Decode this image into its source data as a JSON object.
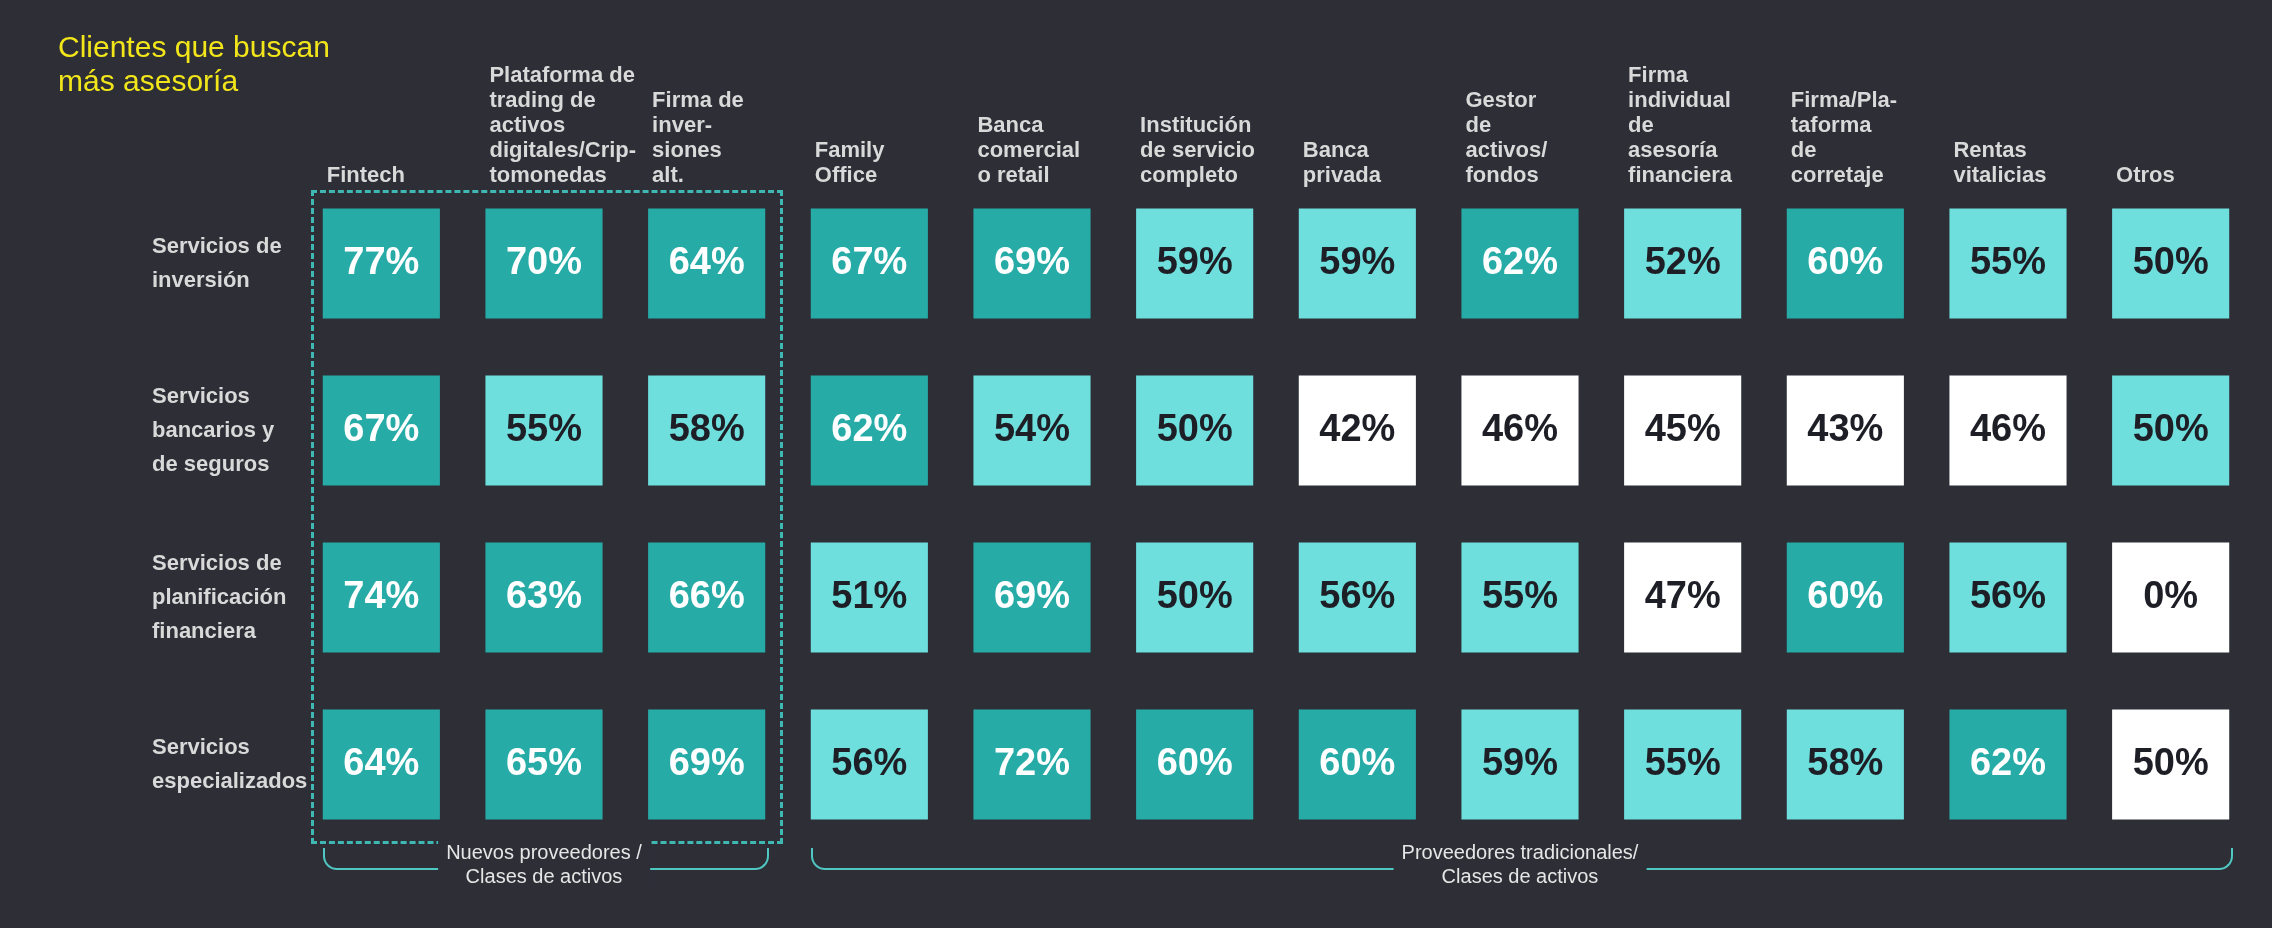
{
  "chart_data": {
    "type": "heatmap",
    "title": "Clientes que buscan\nmás asesoría",
    "categories": [
      "Fintech",
      "Plataforma de\ntrading de\nactivos\ndigitales/Crip-\ntomonedas",
      "Firma de\ninver-\nsiones\nalt.",
      "Family\nOffice",
      "Banca\ncomercial\no retail",
      "Institución\nde servicio\ncompleto",
      "Banca\nprivada",
      "Gestor\nde\nactivos/\nfondos",
      "Firma\nindividual\nde\nasesoría\nfinanciera",
      "Firma/Pla-\ntaforma\nde\ncorretaje",
      "Rentas\nvitalicias",
      "Otros"
    ],
    "y_categories": [
      "Servicios de\ninversión",
      "Servicios\nbancarios y\nde seguros",
      "Servicios de\nplanificación\nfinanciera",
      "Servicios\nespecializados"
    ],
    "cells": [
      [
        77,
        70,
        64,
        67,
        69,
        59,
        59,
        62,
        52,
        60,
        55,
        50
      ],
      [
        67,
        55,
        58,
        62,
        54,
        50,
        42,
        46,
        45,
        43,
        46,
        50
      ],
      [
        74,
        63,
        66,
        51,
        69,
        50,
        56,
        55,
        47,
        60,
        56,
        0
      ],
      [
        64,
        65,
        69,
        56,
        72,
        60,
        60,
        59,
        55,
        58,
        62,
        50
      ]
    ],
    "cell_labels": [
      [
        "77%",
        "70%",
        "64%",
        "67%",
        "69%",
        "59%",
        "59%",
        "62%",
        "52%",
        "60%",
        "55%",
        "50%"
      ],
      [
        "67%",
        "55%",
        "58%",
        "62%",
        "54%",
        "50%",
        "42%",
        "46%",
        "45%",
        "43%",
        "46%",
        "50%"
      ],
      [
        "74%",
        "63%",
        "66%",
        "51%",
        "69%",
        "50%",
        "56%",
        "55%",
        "47%",
        "60%",
        "56%",
        "0%"
      ],
      [
        "64%",
        "65%",
        "69%",
        "56%",
        "72%",
        "60%",
        "60%",
        "59%",
        "55%",
        "58%",
        "62%",
        "50%"
      ]
    ],
    "colors": [
      [
        "#27aba7",
        "#27aba7",
        "#27aba7",
        "#27aba7",
        "#27aba7",
        "#6edfdc",
        "#6edfdc",
        "#27aba7",
        "#6edfdc",
        "#27aba7",
        "#6edfdc",
        "#6edfdc"
      ],
      [
        "#27aba7",
        "#6edfdc",
        "#6edfdc",
        "#27aba7",
        "#6edfdc",
        "#6edfdc",
        "#ffffff",
        "#ffffff",
        "#ffffff",
        "#ffffff",
        "#ffffff",
        "#6edfdc"
      ],
      [
        "#27aba7",
        "#27aba7",
        "#27aba7",
        "#6edfdc",
        "#27aba7",
        "#6edfdc",
        "#6edfdc",
        "#6edfdc",
        "#ffffff",
        "#27aba7",
        "#6edfdc",
        "#ffffff"
      ],
      [
        "#27aba7",
        "#27aba7",
        "#27aba7",
        "#6edfdc",
        "#27aba7",
        "#27aba7",
        "#27aba7",
        "#6edfdc",
        "#6edfdc",
        "#6edfdc",
        "#27aba7",
        "#ffffff"
      ]
    ],
    "annotations": [
      "Nuevos proveedores /\nClases de activos",
      "Proveedores tradicionales/\nClases de activos"
    ]
  }
}
